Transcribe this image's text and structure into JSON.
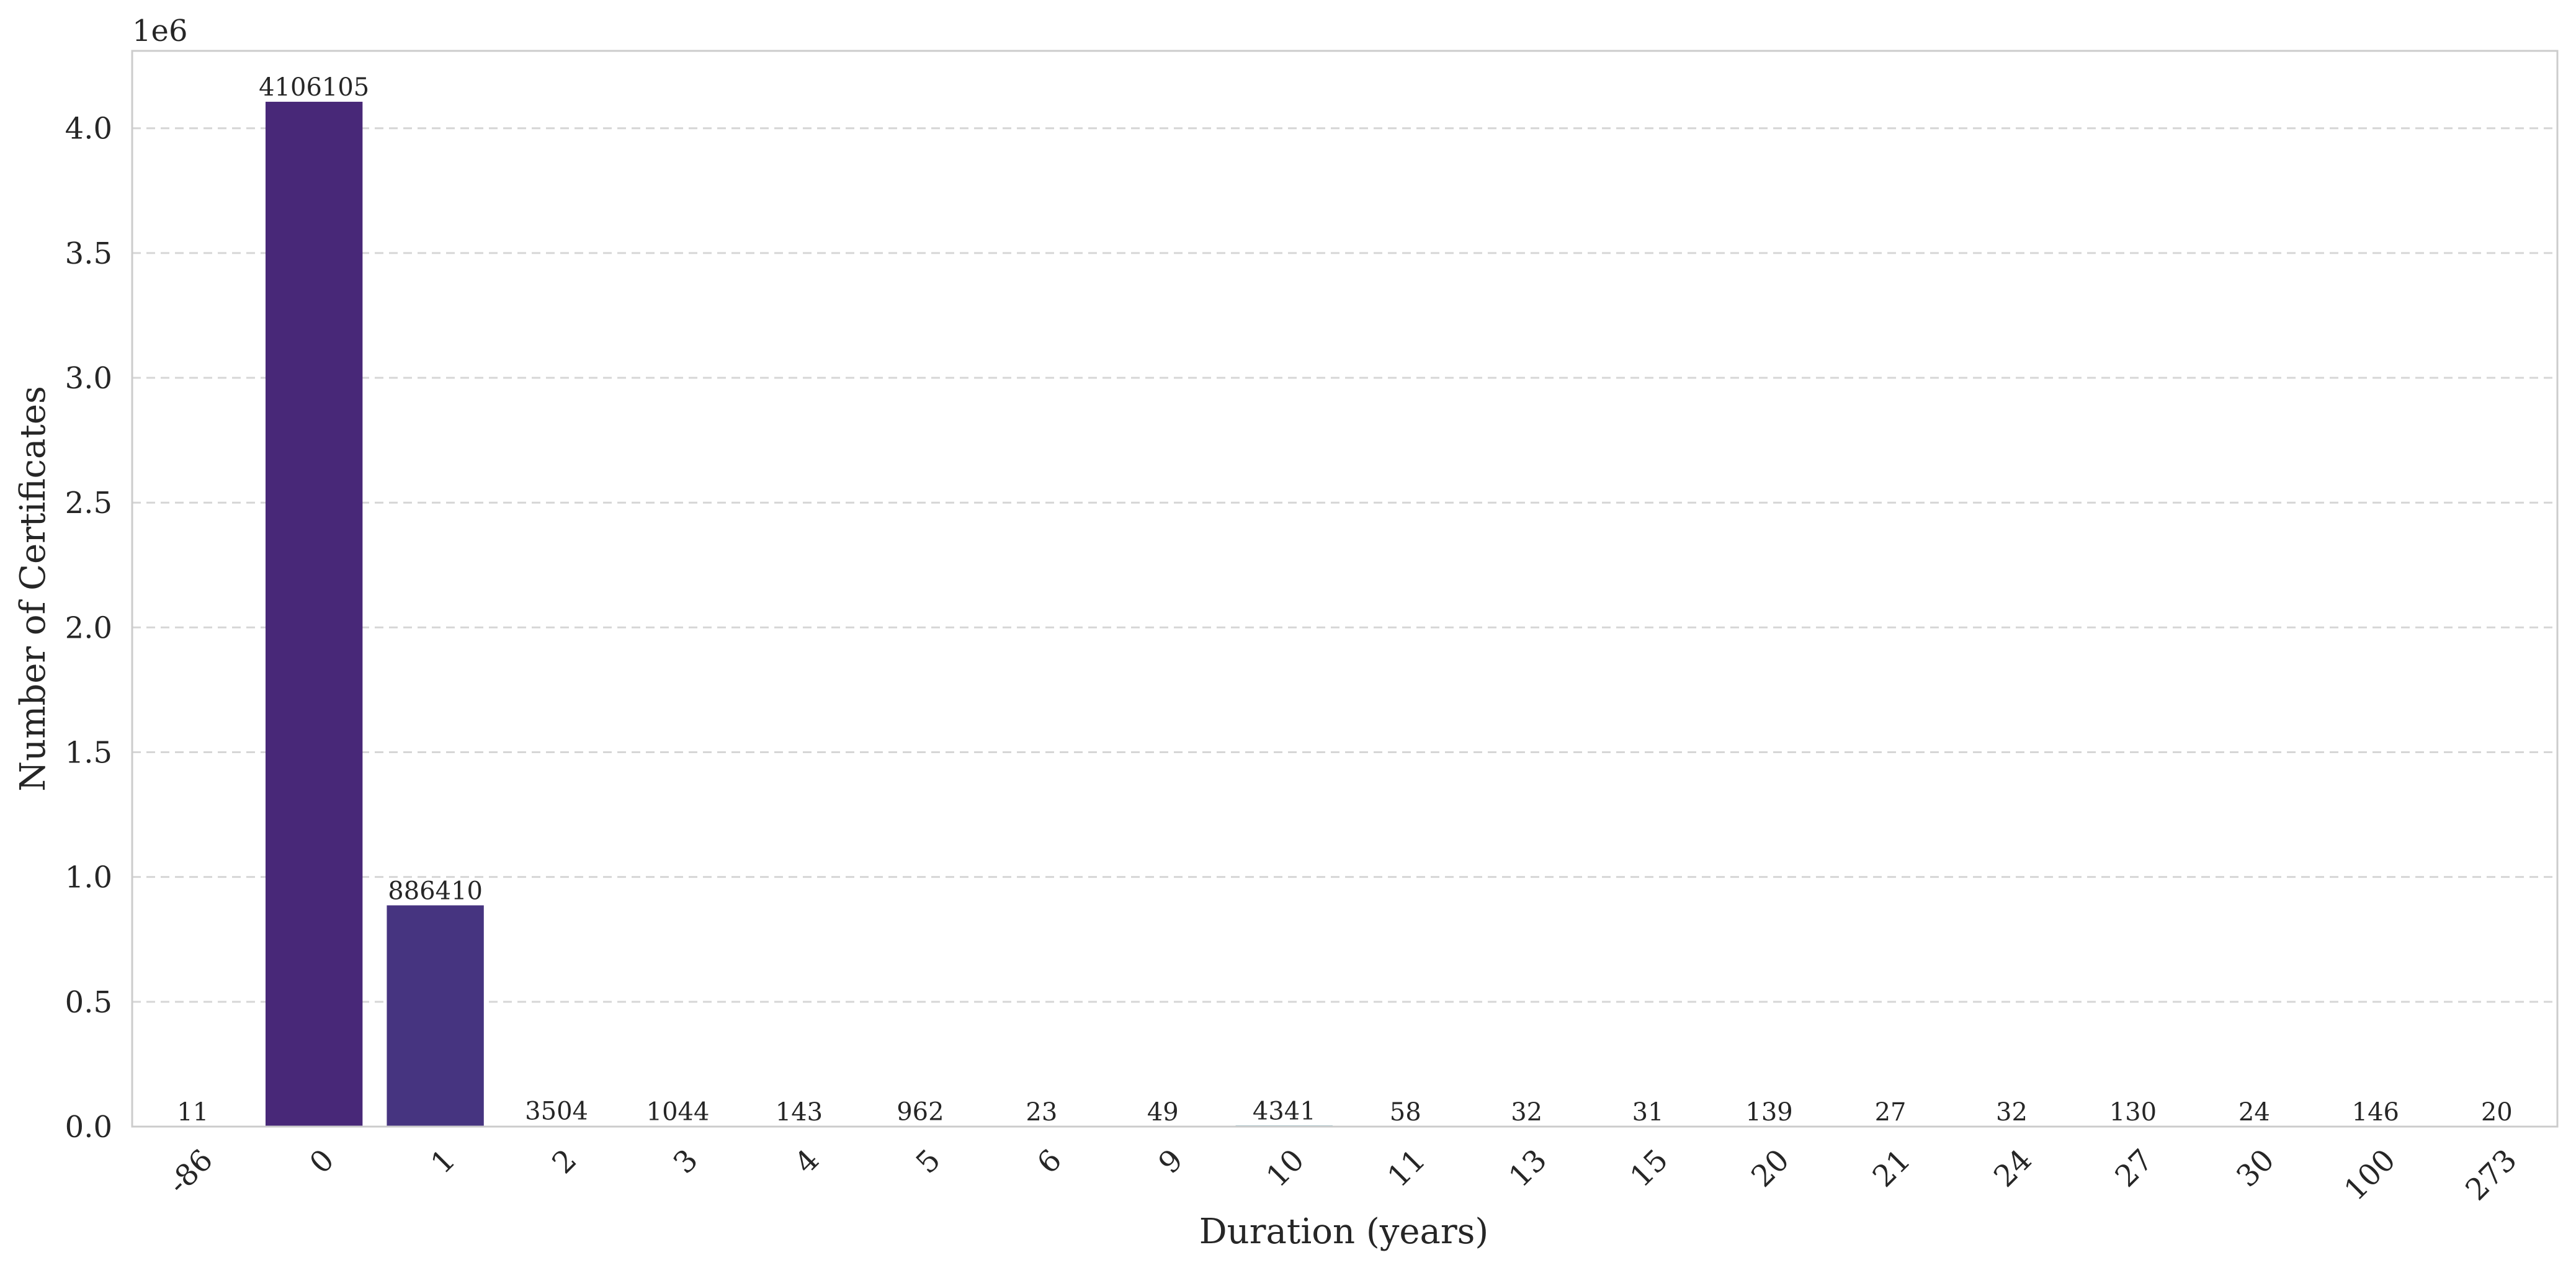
{
  "chart_data": {
    "type": "bar",
    "xlabel": "Duration (years)",
    "ylabel": "Number of Certificates",
    "y_offset_label": "1e6",
    "ylim": [
      0,
      4.31
    ],
    "y_ticks": [
      "0.0",
      "0.5",
      "1.0",
      "1.5",
      "2.0",
      "2.5",
      "3.0",
      "3.5",
      "4.0"
    ],
    "grid": "horizontal dashed",
    "categories": [
      "-86",
      "0",
      "1",
      "2",
      "3",
      "4",
      "5",
      "6",
      "9",
      "10",
      "11",
      "13",
      "15",
      "20",
      "21",
      "24",
      "27",
      "30",
      "100",
      "273"
    ],
    "values": [
      11,
      4106105,
      886410,
      3504,
      1044,
      143,
      962,
      23,
      49,
      4341,
      58,
      32,
      31,
      139,
      27,
      32,
      130,
      24,
      146,
      20
    ],
    "value_labels": [
      "11",
      "4106105",
      "886410",
      "3504",
      "1044",
      "143",
      "962",
      "23",
      "49",
      "4341",
      "58",
      "32",
      "31",
      "139",
      "27",
      "32",
      "130",
      "24",
      "146",
      "20"
    ],
    "bar_colors": [
      "#481b6d",
      "#482878",
      "#463480",
      "#433e85",
      "#3e4989",
      "#3a538b",
      "#355e8d",
      "#31688e",
      "#2d718e",
      "#2a7b8e",
      "#26828e",
      "#228c8d",
      "#1f958b",
      "#20a186",
      "#28ae80",
      "#39b977",
      "#50c46a",
      "#6ccd5a",
      "#8bd646",
      "#addc30"
    ]
  }
}
